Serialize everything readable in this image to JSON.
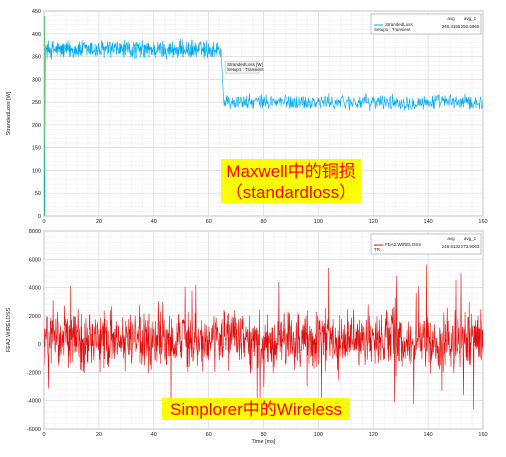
{
  "chart_data": [
    {
      "type": "line",
      "ylabel": "StrandedLoss [W]",
      "xlim": [
        0,
        160
      ],
      "ylim": [
        0,
        450
      ],
      "xticks": [
        0,
        20,
        40,
        60,
        80,
        100,
        120,
        140,
        160
      ],
      "yticks": [
        0,
        50,
        100,
        150,
        200,
        250,
        300,
        350,
        400,
        450
      ],
      "grid": true,
      "line_color": "#00aaee",
      "series": [
        {
          "name": "StrandedLoss",
          "name2": "Setup1 : Transient",
          "description": "noisy copper loss waveform: ~365 W with ±25 W noise from t=0.5 to ~64.5 ms, then drops to ~250 W with ±20 W noise until 160 ms",
          "segments": [
            {
              "x_start": 0.5,
              "x_end": 64.5,
              "mean": 365,
              "amplitude": 25
            },
            {
              "x_start": 65.5,
              "x_end": 160,
              "mean": 250,
              "amplitude": 20
            }
          ]
        }
      ],
      "legend": {
        "position": "top-right",
        "col_headers": [
          "avg",
          "avg_1"
        ],
        "values": [
          "348.4155",
          "250.5965"
        ]
      },
      "inline_label": [
        "StrandedLoss [W]",
        "Setup1 : Transient"
      ],
      "annotation": {
        "line1": "Maxwell中的铜损",
        "line2": "（standardloss）",
        "text_color": "#ff0000",
        "bg_color": "#ffff00"
      }
    },
    {
      "type": "line",
      "xlabel": "Time [ms]",
      "ylabel": "FEA2.WIRELOSS",
      "xlim": [
        0,
        160
      ],
      "ylim": [
        -6000,
        8000
      ],
      "xticks": [
        0,
        20,
        40,
        60,
        80,
        100,
        120,
        140,
        160
      ],
      "yticks": [
        -6000,
        -4000,
        -2000,
        0,
        2000,
        4000,
        6000,
        8000
      ],
      "grid": true,
      "line_color": "#e01010",
      "series": [
        {
          "name": "FEA2.WIRELOSS",
          "name2": "TR",
          "description": "dense noisy signal around ~270 with typical swing ±2500 and spikes reaching about +6000 and -4500 over 0 to 160 ms",
          "mean": 270,
          "typical_amplitude": 2500,
          "max": 6300,
          "min": -4600
        }
      ],
      "legend": {
        "position": "top-right",
        "col_headers": [
          "avg",
          "avg_1"
        ],
        "values": [
          "248.6132",
          "273.9063"
        ]
      },
      "annotation": {
        "line1": "Simplorer中的Wireless",
        "text_color": "#ff0000",
        "bg_color": "#ffff00"
      }
    }
  ]
}
